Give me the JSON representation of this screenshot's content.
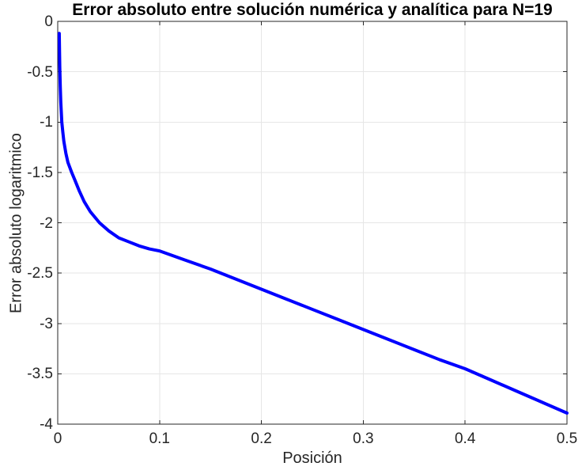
{
  "figure": {
    "title": "Error absoluto entre solución numérica y analítica para N=19",
    "xlabel": "Posición",
    "ylabel": "Error absoluto logaritmico"
  },
  "chart_data": {
    "type": "line",
    "title": "Error absoluto entre solución numérica y analítica para N=19",
    "xlabel": "Posición",
    "ylabel": "Error absoluto logaritmico",
    "xlim": [
      0,
      0.5
    ],
    "ylim": [
      -4,
      0
    ],
    "x_ticks": [
      0,
      0.1,
      0.2,
      0.3,
      0.4,
      0.5
    ],
    "x_tick_labels": [
      "0",
      "0.1",
      "0.2",
      "0.3",
      "0.4",
      "0.5"
    ],
    "y_ticks": [
      0,
      -0.5,
      -1,
      -1.5,
      -2,
      -2.5,
      -3,
      -3.5,
      -4
    ],
    "y_tick_labels": [
      "0",
      "-0.5",
      "-1",
      "-1.5",
      "-2",
      "-2.5",
      "-3",
      "-3.5",
      "-4"
    ],
    "grid": true,
    "legend": "none",
    "line_color": "#0000ff",
    "line_width": 4,
    "axis_color": "#262626",
    "grid_color": "#e6e6e6",
    "series": [
      {
        "name": "log10 error absoluto",
        "x": [
          0.0015,
          0.002,
          0.0025,
          0.003,
          0.004,
          0.005,
          0.006,
          0.008,
          0.01,
          0.0137,
          0.017,
          0.021,
          0.026,
          0.032,
          0.041,
          0.05,
          0.06,
          0.07,
          0.08,
          0.09,
          0.1,
          0.125,
          0.15,
          0.175,
          0.2,
          0.225,
          0.25,
          0.275,
          0.3,
          0.325,
          0.35,
          0.375,
          0.4,
          0.425,
          0.45,
          0.475,
          0.5
        ],
        "y": [
          -0.12,
          -0.45,
          -0.65,
          -0.8,
          -1.0,
          -1.1,
          -1.19,
          -1.31,
          -1.4,
          -1.5,
          -1.58,
          -1.68,
          -1.79,
          -1.89,
          -2.0,
          -2.08,
          -2.15,
          -2.19,
          -2.23,
          -2.26,
          -2.28,
          -2.37,
          -2.46,
          -2.56,
          -2.66,
          -2.76,
          -2.86,
          -2.96,
          -3.06,
          -3.16,
          -3.26,
          -3.36,
          -3.45,
          -3.56,
          -3.67,
          -3.78,
          -3.89
        ]
      }
    ]
  }
}
